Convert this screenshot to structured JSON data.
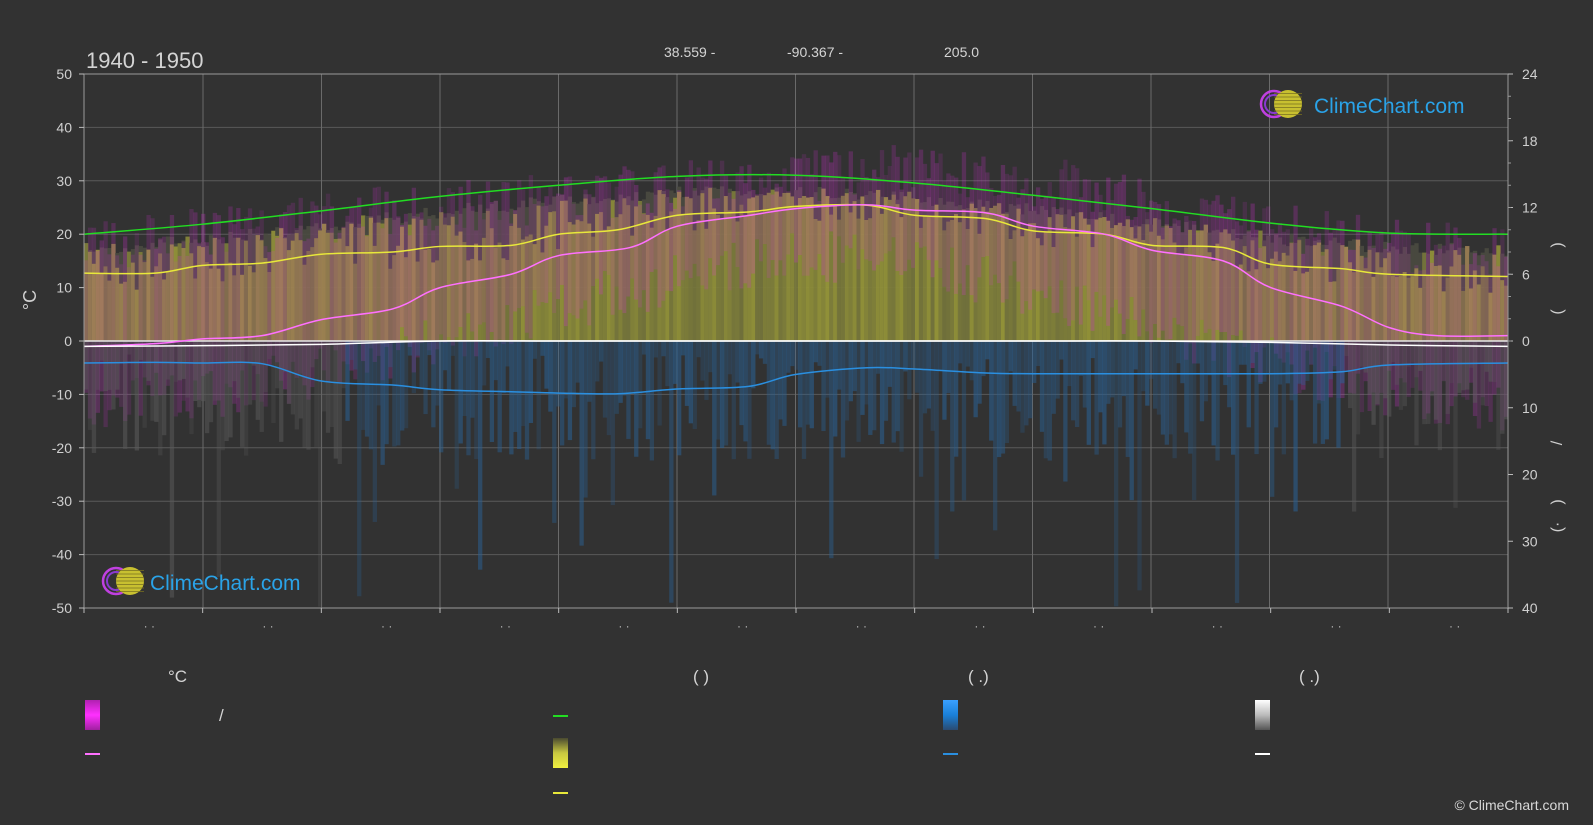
{
  "header": {
    "period": "1940 - 1950",
    "lat": "38.559 -",
    "lon": "-90.367 -",
    "elev": "205.0"
  },
  "left_axis_unit": "°C",
  "right_axis_top_sym": ")",
  "right_axis_mid_sym": "(",
  "right_axis_slash": "/",
  "right_axis_bot_sym1": ")",
  "right_axis_bot_sym2": "(·",
  "month_tick_label": "· ·",
  "logo_text": "ClimeChart.com",
  "copyright": "© ClimeChart.com",
  "legend": {
    "col1_head": "°C",
    "col1_slash": "/",
    "col2_head": "(          )",
    "col3_head": "(    .)",
    "col4_head": "(    .)"
  },
  "colors": {
    "background": "#323232",
    "grid": "#5a5a5a",
    "temp_range": "#e030e0",
    "mean_temp": "#ff70ff",
    "daylight": "#22dd22",
    "sunshine": "#e8e83a",
    "precip": "#2a8fe0",
    "snow": "#ffffff",
    "logo_blue": "#2aa3e8"
  },
  "chart_data": {
    "type": "area",
    "x_unit": "month",
    "months": [
      1,
      2,
      3,
      4,
      5,
      6,
      7,
      8,
      9,
      10,
      11,
      12
    ],
    "left_axis": {
      "ticks": [
        50,
        40,
        30,
        20,
        10,
        0,
        -10,
        -20,
        -30,
        -40,
        -50
      ],
      "ylim": [
        -50,
        50
      ]
    },
    "right_axis_top": {
      "ticks": [
        24,
        18,
        12,
        6,
        0
      ],
      "ylim": [
        0,
        24
      ]
    },
    "right_axis_bottom": {
      "ticks": [
        0,
        10,
        20,
        30,
        40
      ],
      "ylim": [
        0,
        40
      ]
    },
    "series": [
      {
        "id": "daylight_hours",
        "axis": "right_top",
        "color": "#22dd22",
        "points": [
          [
            0,
            9.6
          ],
          [
            1,
            10.5
          ],
          [
            2,
            11.7
          ],
          [
            3,
            13.0
          ],
          [
            4,
            14.0
          ],
          [
            5,
            14.8
          ],
          [
            6,
            14.9
          ],
          [
            7,
            14.2
          ],
          [
            8,
            13.1
          ],
          [
            9,
            11.9
          ],
          [
            10,
            10.6
          ],
          [
            11,
            9.7
          ],
          [
            12,
            9.6
          ]
        ]
      },
      {
        "id": "sunshine_hours",
        "axis": "right_top",
        "color": "#e8e83a",
        "points": [
          [
            0,
            6.1
          ],
          [
            0.6,
            6.1
          ],
          [
            1.0,
            6.8
          ],
          [
            1.5,
            7.0
          ],
          [
            2.0,
            7.8
          ],
          [
            2.6,
            8.0
          ],
          [
            3.0,
            8.5
          ],
          [
            3.6,
            8.6
          ],
          [
            4.0,
            9.6
          ],
          [
            4.5,
            10.0
          ],
          [
            5.0,
            11.3
          ],
          [
            5.6,
            11.6
          ],
          [
            6.0,
            12.1
          ],
          [
            6.6,
            12.2
          ],
          [
            7.0,
            11.3
          ],
          [
            7.6,
            11.0
          ],
          [
            8.0,
            9.9
          ],
          [
            8.6,
            9.6
          ],
          [
            9.0,
            8.6
          ],
          [
            9.6,
            8.4
          ],
          [
            10.0,
            6.9
          ],
          [
            10.6,
            6.5
          ],
          [
            11.0,
            6.0
          ],
          [
            12,
            5.8
          ]
        ]
      },
      {
        "id": "mean_temperature",
        "axis": "left",
        "color": "#ff70ff",
        "points": [
          [
            0,
            -1.0
          ],
          [
            0.6,
            -0.5
          ],
          [
            1.0,
            0.4
          ],
          [
            1.5,
            1.0
          ],
          [
            2.0,
            4.0
          ],
          [
            2.6,
            6.0
          ],
          [
            3.0,
            10.0
          ],
          [
            3.6,
            12.5
          ],
          [
            4.0,
            16.0
          ],
          [
            4.6,
            17.5
          ],
          [
            5.0,
            21.5
          ],
          [
            5.6,
            23.5
          ],
          [
            6.0,
            24.8
          ],
          [
            6.6,
            25.5
          ],
          [
            7.0,
            24.5
          ],
          [
            7.6,
            24.0
          ],
          [
            8.0,
            21.5
          ],
          [
            8.6,
            20.0
          ],
          [
            9.0,
            17.0
          ],
          [
            9.6,
            15.0
          ],
          [
            10.0,
            10.0
          ],
          [
            10.6,
            6.5
          ],
          [
            11.0,
            2.5
          ],
          [
            11.4,
            1.0
          ],
          [
            12,
            1.0
          ]
        ]
      },
      {
        "id": "snowfall_mean",
        "axis": "right_bottom",
        "color": "#ffffff",
        "points": [
          [
            0,
            0.8
          ],
          [
            1,
            0.7
          ],
          [
            2,
            0.5
          ],
          [
            3,
            0.0
          ],
          [
            4,
            0.0
          ],
          [
            5,
            0.0
          ],
          [
            6,
            0.0
          ],
          [
            7,
            0.0
          ],
          [
            8,
            0.0
          ],
          [
            9,
            0.0
          ],
          [
            10,
            0.2
          ],
          [
            11,
            0.6
          ],
          [
            12,
            0.8
          ]
        ]
      },
      {
        "id": "precipitation_mean",
        "axis": "right_bottom",
        "color": "#2a8fe0",
        "points": [
          [
            0,
            3.3
          ],
          [
            0.6,
            3.2
          ],
          [
            1.0,
            3.3
          ],
          [
            1.5,
            3.4
          ],
          [
            2.0,
            6.0
          ],
          [
            2.6,
            6.6
          ],
          [
            3.0,
            7.3
          ],
          [
            3.6,
            7.6
          ],
          [
            4.0,
            7.8
          ],
          [
            4.5,
            7.9
          ],
          [
            5.0,
            7.2
          ],
          [
            5.6,
            6.8
          ],
          [
            6.0,
            5.0
          ],
          [
            6.6,
            4.0
          ],
          [
            7.0,
            4.2
          ],
          [
            7.6,
            4.8
          ],
          [
            8.0,
            4.9
          ],
          [
            9.0,
            4.9
          ],
          [
            10.0,
            4.9
          ],
          [
            10.6,
            4.6
          ],
          [
            11.0,
            3.6
          ],
          [
            12,
            3.3
          ]
        ]
      }
    ],
    "max_daily_temp_envelope": {
      "axis": "left",
      "color": "#e030e0",
      "points": [
        [
          0,
          18
        ],
        [
          1,
          20
        ],
        [
          2,
          23
        ],
        [
          3,
          25
        ],
        [
          4,
          27
        ],
        [
          5,
          29
        ],
        [
          6,
          31
        ],
        [
          7,
          32
        ],
        [
          8,
          30
        ],
        [
          9,
          26
        ],
        [
          10,
          21
        ],
        [
          11,
          18
        ],
        [
          12,
          17
        ]
      ]
    },
    "min_daily_temp_envelope": {
      "axis": "left",
      "color": "#e030e0",
      "points": [
        [
          0,
          -12
        ],
        [
          1,
          -10
        ],
        [
          2,
          -6
        ],
        [
          3,
          0
        ],
        [
          4,
          6
        ],
        [
          5,
          12
        ],
        [
          6,
          16
        ],
        [
          7,
          15
        ],
        [
          8,
          9
        ],
        [
          9,
          2
        ],
        [
          10,
          -4
        ],
        [
          11,
          -10
        ],
        [
          12,
          -12
        ]
      ]
    },
    "sunshine_fill": {
      "axis": "right_top",
      "color": "#b8b834"
    }
  }
}
